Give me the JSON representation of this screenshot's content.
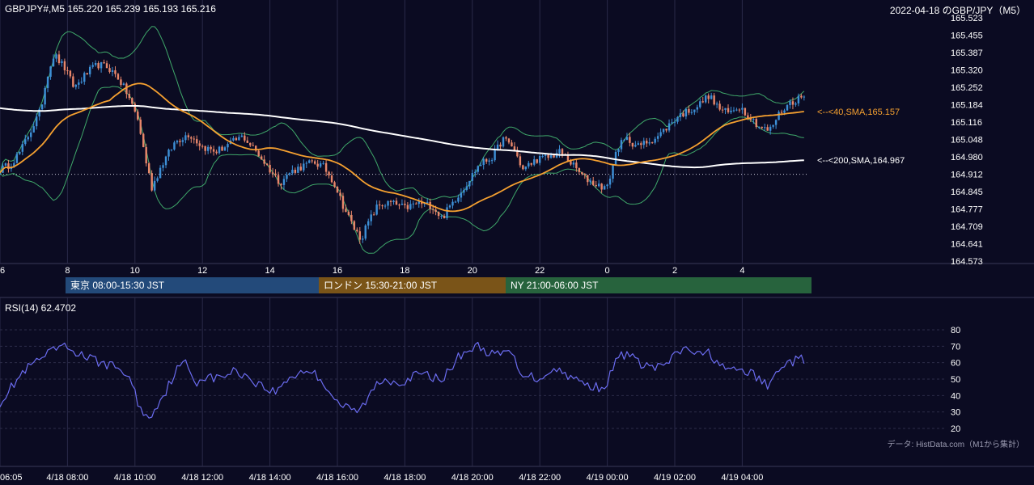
{
  "header": {
    "left": "GBPJPY#,M5 165.220 165.239 165.193 165.216",
    "right": "2022-04-18 のGBP/JPY（M5）"
  },
  "sessions": [
    {
      "label": "東京 08:00-15:30 JST",
      "color": "#234a7a"
    },
    {
      "label": "ロンドン 15:30-21:00 JST",
      "color": "#7a5418"
    },
    {
      "label": "NY 21:00-06:00 JST",
      "color": "#27633d"
    }
  ],
  "rsi_label": "RSI(14) 62.4702",
  "source_note": "データ: HistData.com（M1から集計）",
  "colors": {
    "background": "#0b0b22",
    "bull": "#3d8fd6",
    "bear": "#e8866a",
    "sma40": "#f5a030",
    "sma200": "#ffffff",
    "bollinger": "#3fa86a",
    "rsi": "#6b6cf0",
    "grid": "#2a2a48"
  },
  "chart_data": [
    {
      "type": "candlestick",
      "name": "GBPJPY#,M5",
      "y_ticks": [
        "165.523",
        "165.455",
        "165.387",
        "165.320",
        "165.252",
        "165.184",
        "165.116",
        "165.048",
        "164.980",
        "164.912",
        "164.845",
        "164.777",
        "164.709",
        "164.641",
        "164.573"
      ],
      "ylim": [
        164.573,
        165.523
      ],
      "x_ticks": [
        "6",
        "8",
        "10",
        "12",
        "14",
        "16",
        "18",
        "20",
        "22",
        "0",
        "2",
        "4"
      ],
      "x_tick_hours": [
        6,
        8,
        10,
        12,
        14,
        16,
        18,
        20,
        22,
        24,
        26,
        28
      ],
      "xlim_hours": [
        6,
        29.9
      ],
      "reference_price": 164.912,
      "annotations": [
        {
          "text": "<--<40,SMA,165.157",
          "value": 165.157,
          "color": "#f5a030"
        },
        {
          "text": "<--<200,SMA,164.967",
          "value": 164.967,
          "color": "#ffffff"
        }
      ],
      "price_path": [
        [
          6.0,
          164.93
        ],
        [
          6.3,
          164.95
        ],
        [
          6.6,
          165.0
        ],
        [
          6.9,
          165.08
        ],
        [
          7.2,
          165.16
        ],
        [
          7.4,
          165.3
        ],
        [
          7.6,
          165.38
        ],
        [
          7.9,
          165.33
        ],
        [
          8.2,
          165.25
        ],
        [
          8.6,
          165.31
        ],
        [
          8.9,
          165.34
        ],
        [
          9.2,
          165.33
        ],
        [
          9.5,
          165.29
        ],
        [
          9.8,
          165.22
        ],
        [
          10.1,
          165.12
        ],
        [
          10.3,
          164.98
        ],
        [
          10.5,
          164.86
        ],
        [
          10.8,
          164.95
        ],
        [
          11.2,
          165.04
        ],
        [
          11.6,
          165.07
        ],
        [
          12.0,
          165.02
        ],
        [
          12.4,
          165.0
        ],
        [
          12.8,
          165.03
        ],
        [
          13.2,
          165.06
        ],
        [
          13.6,
          165.0
        ],
        [
          14.0,
          164.93
        ],
        [
          14.3,
          164.88
        ],
        [
          14.6,
          164.92
        ],
        [
          14.9,
          164.94
        ],
        [
          15.3,
          164.96
        ],
        [
          15.6,
          164.94
        ],
        [
          15.9,
          164.88
        ],
        [
          16.2,
          164.78
        ],
        [
          16.5,
          164.7
        ],
        [
          16.7,
          164.66
        ],
        [
          16.9,
          164.72
        ],
        [
          17.2,
          164.79
        ],
        [
          17.6,
          164.8
        ],
        [
          18.0,
          164.78
        ],
        [
          18.4,
          164.8
        ],
        [
          18.8,
          164.79
        ],
        [
          19.1,
          164.74
        ],
        [
          19.4,
          164.8
        ],
        [
          19.8,
          164.87
        ],
        [
          20.2,
          164.95
        ],
        [
          20.6,
          164.98
        ],
        [
          20.9,
          165.05
        ],
        [
          21.2,
          165.02
        ],
        [
          21.5,
          164.93
        ],
        [
          21.9,
          164.97
        ],
        [
          22.3,
          164.98
        ],
        [
          22.6,
          165.0
        ],
        [
          22.9,
          164.96
        ],
        [
          23.3,
          164.9
        ],
        [
          23.7,
          164.87
        ],
        [
          24.0,
          164.86
        ],
        [
          24.3,
          165.02
        ],
        [
          24.6,
          165.05
        ],
        [
          24.9,
          165.02
        ],
        [
          25.2,
          165.04
        ],
        [
          25.5,
          165.06
        ],
        [
          25.8,
          165.1
        ],
        [
          26.1,
          165.14
        ],
        [
          26.4,
          165.16
        ],
        [
          26.7,
          165.18
        ],
        [
          27.0,
          165.22
        ],
        [
          27.3,
          165.17
        ],
        [
          27.6,
          165.15
        ],
        [
          27.9,
          165.18
        ],
        [
          28.2,
          165.14
        ],
        [
          28.5,
          165.1
        ],
        [
          28.8,
          165.08
        ],
        [
          29.1,
          165.15
        ],
        [
          29.4,
          165.19
        ],
        [
          29.7,
          165.21
        ],
        [
          29.9,
          165.216
        ]
      ]
    },
    {
      "type": "line",
      "name": "RSI(14)",
      "y_ticks": [
        "80",
        "70",
        "60",
        "50",
        "40",
        "30",
        "20"
      ],
      "ylim": [
        17,
        85
      ],
      "x_ticks": [
        "06:05",
        "4/18 08:00",
        "4/18 10:00",
        "4/18 12:00",
        "4/18 14:00",
        "4/18 16:00",
        "4/18 18:00",
        "4/18 20:00",
        "4/18 22:00",
        "4/19 00:00",
        "4/19 02:00",
        "4/19 04:00"
      ],
      "x_tick_hours": [
        6.08,
        8,
        10,
        12,
        14,
        16,
        18,
        20,
        22,
        24,
        26,
        28
      ],
      "rsi_path": [
        [
          6.0,
          36
        ],
        [
          6.3,
          44
        ],
        [
          6.6,
          52
        ],
        [
          6.9,
          58
        ],
        [
          7.2,
          62
        ],
        [
          7.5,
          66
        ],
        [
          7.8,
          70
        ],
        [
          8.1,
          68
        ],
        [
          8.4,
          65
        ],
        [
          8.7,
          62
        ],
        [
          9.0,
          60
        ],
        [
          9.3,
          58
        ],
        [
          9.6,
          56
        ],
        [
          9.9,
          48
        ],
        [
          10.1,
          35
        ],
        [
          10.3,
          28
        ],
        [
          10.4,
          25
        ],
        [
          10.6,
          33
        ],
        [
          10.9,
          42
        ],
        [
          11.2,
          55
        ],
        [
          11.5,
          60
        ],
        [
          11.8,
          48
        ],
        [
          12.1,
          52
        ],
        [
          12.4,
          50
        ],
        [
          12.7,
          53
        ],
        [
          13.0,
          55
        ],
        [
          13.3,
          52
        ],
        [
          13.6,
          48
        ],
        [
          13.9,
          44
        ],
        [
          14.2,
          42
        ],
        [
          14.5,
          50
        ],
        [
          14.8,
          53
        ],
        [
          15.1,
          56
        ],
        [
          15.4,
          52
        ],
        [
          15.7,
          45
        ],
        [
          16.0,
          36
        ],
        [
          16.3,
          32
        ],
        [
          16.6,
          30
        ],
        [
          16.9,
          38
        ],
        [
          17.2,
          48
        ],
        [
          17.5,
          50
        ],
        [
          17.8,
          48
        ],
        [
          18.1,
          50
        ],
        [
          18.4,
          53
        ],
        [
          18.7,
          52
        ],
        [
          19.0,
          50
        ],
        [
          19.3,
          54
        ],
        [
          19.6,
          64
        ],
        [
          19.9,
          68
        ],
        [
          20.2,
          70
        ],
        [
          20.5,
          66
        ],
        [
          20.8,
          64
        ],
        [
          21.1,
          68
        ],
        [
          21.4,
          55
        ],
        [
          21.7,
          52
        ],
        [
          22.0,
          50
        ],
        [
          22.3,
          56
        ],
        [
          22.6,
          55
        ],
        [
          22.9,
          52
        ],
        [
          23.2,
          48
        ],
        [
          23.5,
          46
        ],
        [
          23.8,
          45
        ],
        [
          24.0,
          48
        ],
        [
          24.3,
          63
        ],
        [
          24.6,
          66
        ],
        [
          24.9,
          60
        ],
        [
          25.2,
          58
        ],
        [
          25.5,
          57
        ],
        [
          25.8,
          60
        ],
        [
          26.1,
          66
        ],
        [
          26.4,
          69
        ],
        [
          26.7,
          64
        ],
        [
          27.0,
          66
        ],
        [
          27.3,
          60
        ],
        [
          27.6,
          54
        ],
        [
          27.9,
          56
        ],
        [
          28.2,
          54
        ],
        [
          28.5,
          50
        ],
        [
          28.8,
          45
        ],
        [
          29.1,
          58
        ],
        [
          29.4,
          60
        ],
        [
          29.7,
          62
        ],
        [
          29.9,
          62.47
        ]
      ]
    }
  ]
}
